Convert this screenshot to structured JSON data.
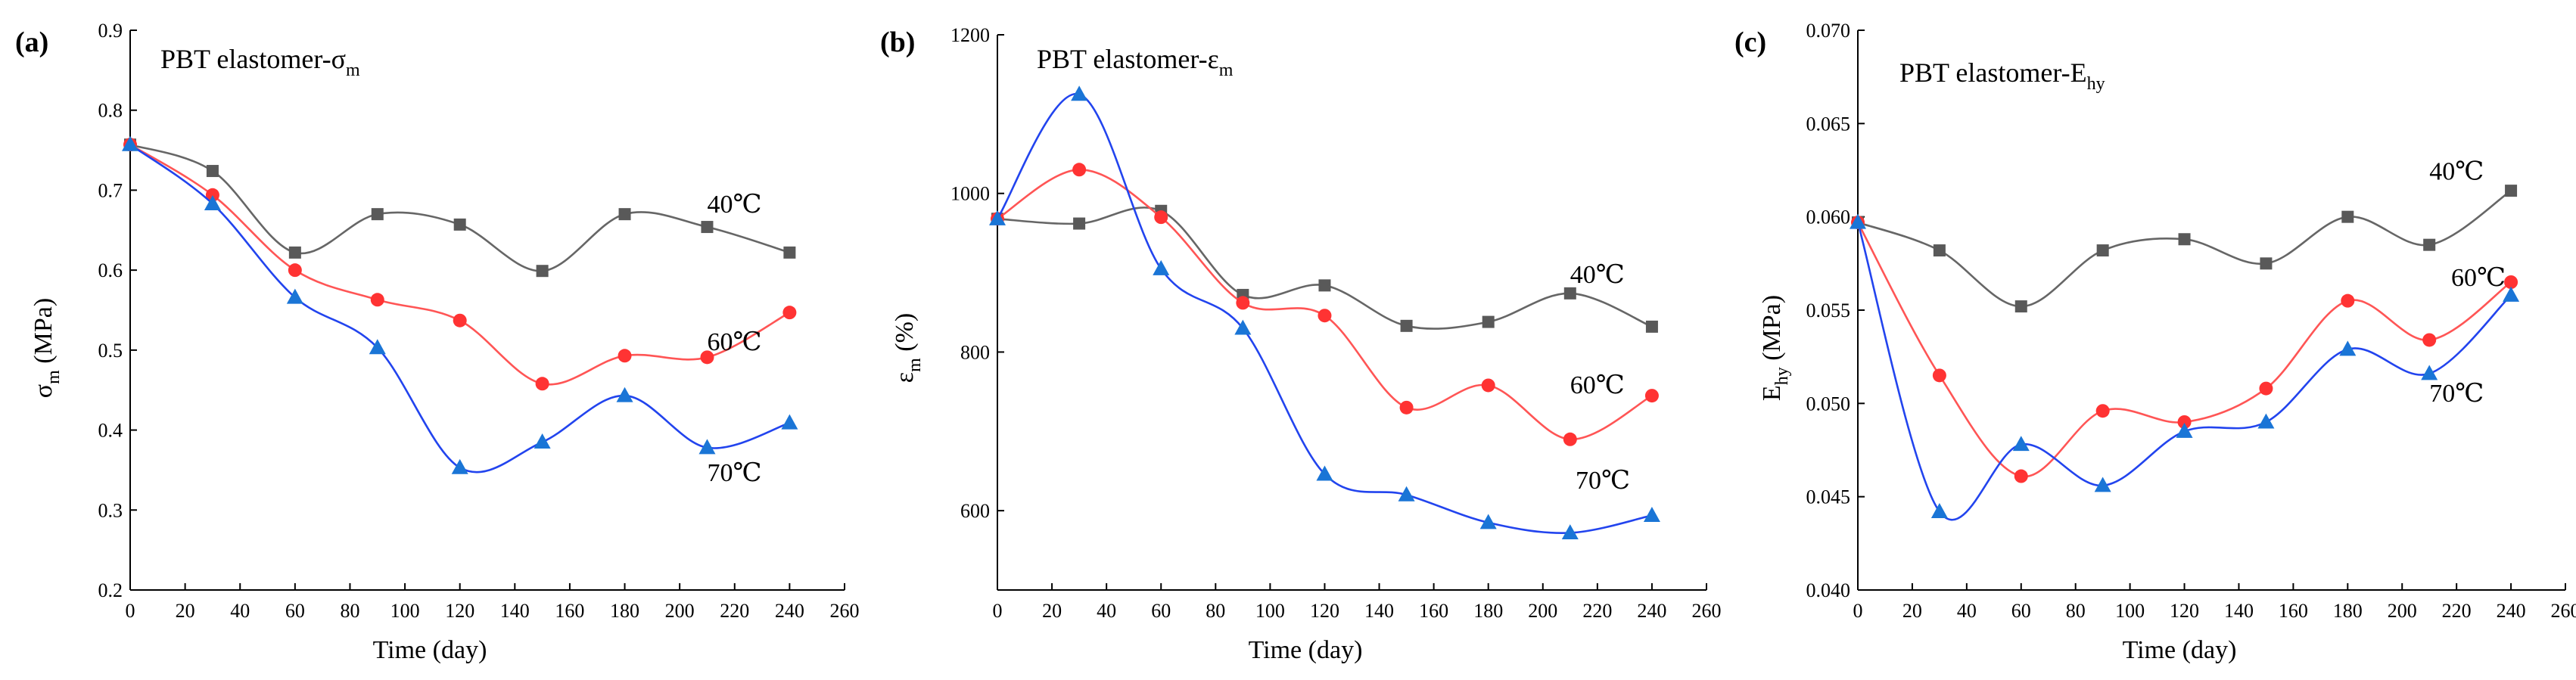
{
  "figure": {
    "background": "#ffffff"
  },
  "chart_data": [
    {
      "type": "scatter",
      "panel_label": "(a)",
      "title": "PBT elastomer-σ",
      "title_sub": "m",
      "xlabel": "Time (day)",
      "ylabel": "σ",
      "ylabel_sub": "m",
      "ylabel_unit": " (MPa)",
      "xlim": [
        0,
        260
      ],
      "ylim": [
        0.2,
        0.9
      ],
      "xticks": [
        0,
        20,
        40,
        60,
        80,
        100,
        120,
        140,
        160,
        180,
        200,
        220,
        240,
        260
      ],
      "yticks": [
        0.2,
        0.3,
        0.4,
        0.5,
        0.6,
        0.7,
        0.8,
        0.9
      ],
      "ytick_labels": [
        "0.2",
        "0.3",
        "0.4",
        "0.5",
        "0.6",
        "0.7",
        "0.8",
        "0.9"
      ],
      "x": [
        0,
        30,
        60,
        90,
        120,
        150,
        180,
        210,
        240
      ],
      "series": [
        {
          "name": "40℃",
          "color": "#595959",
          "line_color": "#666666",
          "marker": "square",
          "values": [
            0.757,
            0.724,
            0.622,
            0.67,
            0.657,
            0.599,
            0.67,
            0.654,
            0.622
          ],
          "label_anchor": [
            210,
            0.672
          ]
        },
        {
          "name": "60℃",
          "color": "#ff3333",
          "line_color": "#ff5555",
          "marker": "circle",
          "values": [
            0.757,
            0.694,
            0.6,
            0.563,
            0.537,
            0.458,
            0.493,
            0.491,
            0.547
          ],
          "label_anchor": [
            210,
            0.5
          ]
        },
        {
          "name": "70℃",
          "color": "#1a75d6",
          "line_color": "#2244ee",
          "marker": "triangle",
          "values": [
            0.757,
            0.683,
            0.566,
            0.503,
            0.353,
            0.385,
            0.443,
            0.378,
            0.409
          ],
          "label_anchor": [
            210,
            0.336
          ]
        }
      ]
    },
    {
      "type": "scatter",
      "panel_label": "(b)",
      "title": "PBT elastomer-ε",
      "title_sub": "m",
      "xlabel": "Time (day)",
      "ylabel": "ε",
      "ylabel_sub": "m",
      "ylabel_unit": " (%)",
      "xlim": [
        0,
        260
      ],
      "ylim": [
        500,
        1200
      ],
      "xticks": [
        0,
        20,
        40,
        60,
        80,
        100,
        120,
        140,
        160,
        180,
        200,
        220,
        240,
        260
      ],
      "yticks": [
        600,
        800,
        1000,
        1200
      ],
      "ytick_labels": [
        "600",
        "800",
        "1000",
        "1200"
      ],
      "x": [
        0,
        30,
        60,
        90,
        120,
        150,
        180,
        210,
        240
      ],
      "series": [
        {
          "name": "40℃",
          "color": "#595959",
          "line_color": "#666666",
          "marker": "square",
          "values": [
            968,
            962,
            978,
            872,
            884,
            833,
            838,
            874,
            832
          ],
          "label_anchor": [
            210,
            887
          ]
        },
        {
          "name": "60℃",
          "color": "#ff3333",
          "line_color": "#ff5555",
          "marker": "circle",
          "values": [
            968,
            1030,
            970,
            862,
            846,
            730,
            758,
            690,
            745
          ],
          "label_anchor": [
            210,
            748
          ]
        },
        {
          "name": "70℃",
          "color": "#1a75d6",
          "line_color": "#2244ee",
          "marker": "triangle",
          "values": [
            968,
            1125,
            905,
            830,
            646,
            620,
            585,
            572,
            594
          ],
          "label_anchor": [
            212,
            628
          ]
        }
      ]
    },
    {
      "type": "scatter",
      "panel_label": "(c)",
      "title": "PBT elastomer-E",
      "title_sub": "hy",
      "xlabel": "Time (day)",
      "ylabel": "E",
      "ylabel_sub": "hy",
      "ylabel_unit": " (MPa)",
      "xlim": [
        0,
        260
      ],
      "ylim": [
        0.04,
        0.07
      ],
      "xticks": [
        0,
        20,
        40,
        60,
        80,
        100,
        120,
        140,
        160,
        180,
        200,
        220,
        240,
        260
      ],
      "yticks": [
        0.04,
        0.045,
        0.05,
        0.055,
        0.06,
        0.065,
        0.07
      ],
      "ytick_labels": [
        "0.040",
        "0.045",
        "0.050",
        "0.055",
        "0.060",
        "0.065",
        "0.070"
      ],
      "x": [
        0,
        30,
        60,
        90,
        120,
        150,
        180,
        210,
        240
      ],
      "series": [
        {
          "name": "40℃",
          "color": "#595959",
          "line_color": "#666666",
          "marker": "square",
          "values": [
            0.0597,
            0.0582,
            0.0552,
            0.0582,
            0.0588,
            0.0575,
            0.06,
            0.0585,
            0.0614
          ],
          "label_anchor": [
            210,
            0.062
          ]
        },
        {
          "name": "60℃",
          "color": "#ff3333",
          "line_color": "#ff5555",
          "marker": "circle",
          "values": [
            0.0597,
            0.0515,
            0.0461,
            0.0496,
            0.049,
            0.0508,
            0.0555,
            0.0534,
            0.0565
          ],
          "label_anchor": [
            218,
            0.0563
          ]
        },
        {
          "name": "70℃",
          "color": "#1a75d6",
          "line_color": "#2244ee",
          "marker": "triangle",
          "values": [
            0.0597,
            0.0442,
            0.0478,
            0.0456,
            0.0485,
            0.049,
            0.0529,
            0.0516,
            0.0558
          ],
          "label_anchor": [
            210,
            0.0501
          ]
        }
      ]
    }
  ]
}
